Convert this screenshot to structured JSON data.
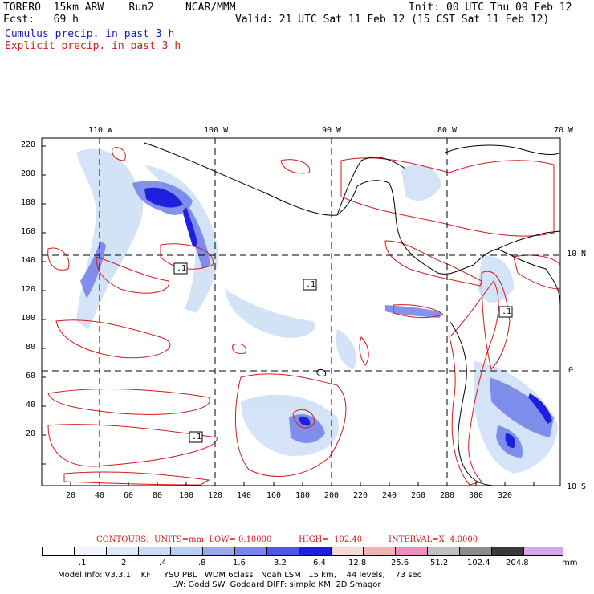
{
  "header": {
    "model": "TORERO  15km ARW    Run2     NCAR/MMM",
    "init": "Init: 00 UTC Thu 09 Feb 12",
    "fcst": "Fcst:   69 h",
    "valid": "Valid: 21 UTC Sat 11 Feb 12 (15 CST Sat 11 Feb 12)",
    "cumulus": "Cumulus precip. in past 3 h",
    "explicit": "Explicit precip. in past 3 h"
  },
  "axes": {
    "lon_top": [
      "110 W",
      "100 W",
      "90 W",
      "80 W",
      "70 W"
    ],
    "lat_right": [
      "10 N",
      "0",
      "10 S"
    ],
    "y_ticks": [
      "220",
      "200",
      "180",
      "160",
      "140",
      "120",
      "100",
      "80",
      "60",
      "40",
      "20"
    ],
    "x_ticks": [
      "20",
      "40",
      "60",
      "80",
      "100",
      "120",
      "140",
      "160",
      "180",
      "200",
      "220",
      "240",
      "260",
      "280",
      "300",
      "320"
    ]
  },
  "labels": {
    "low_marker": ".1"
  },
  "contour_info": {
    "units": "CONTOURS:  UNITS=mm  LOW= 0.10000",
    "high": "HIGH=  102.40",
    "interval": "INTERVAL=X  4.0000"
  },
  "legend": {
    "colors": [
      "#ffffff",
      "#f2f5fc",
      "#dfe9f9",
      "#c9dbf4",
      "#b6cff1",
      "#9aa8ef",
      "#7a86ea",
      "#5056e4",
      "#1f1fe0",
      "#f6d8d6",
      "#f0b4b2",
      "#ed8fbe",
      "#c0c0c0",
      "#8c8c8c",
      "#3a3a3a",
      "#d5a6f0"
    ],
    "values": [
      ".1",
      ".2",
      ".4",
      ".8",
      "1.6",
      "3.2",
      "6.4",
      "12.8",
      "25.6",
      "51.2",
      "102.4",
      "204.8"
    ],
    "unit": "mm"
  },
  "footer": {
    "line1": "Model Info: V3.3.1    KF     YSU PBL   WDM 6class   Noah LSM   15 km,    44 levels,    73 sec",
    "line2": "LW: Godd SW: Goddard DIFF: simple KM: 2D Smagor"
  }
}
